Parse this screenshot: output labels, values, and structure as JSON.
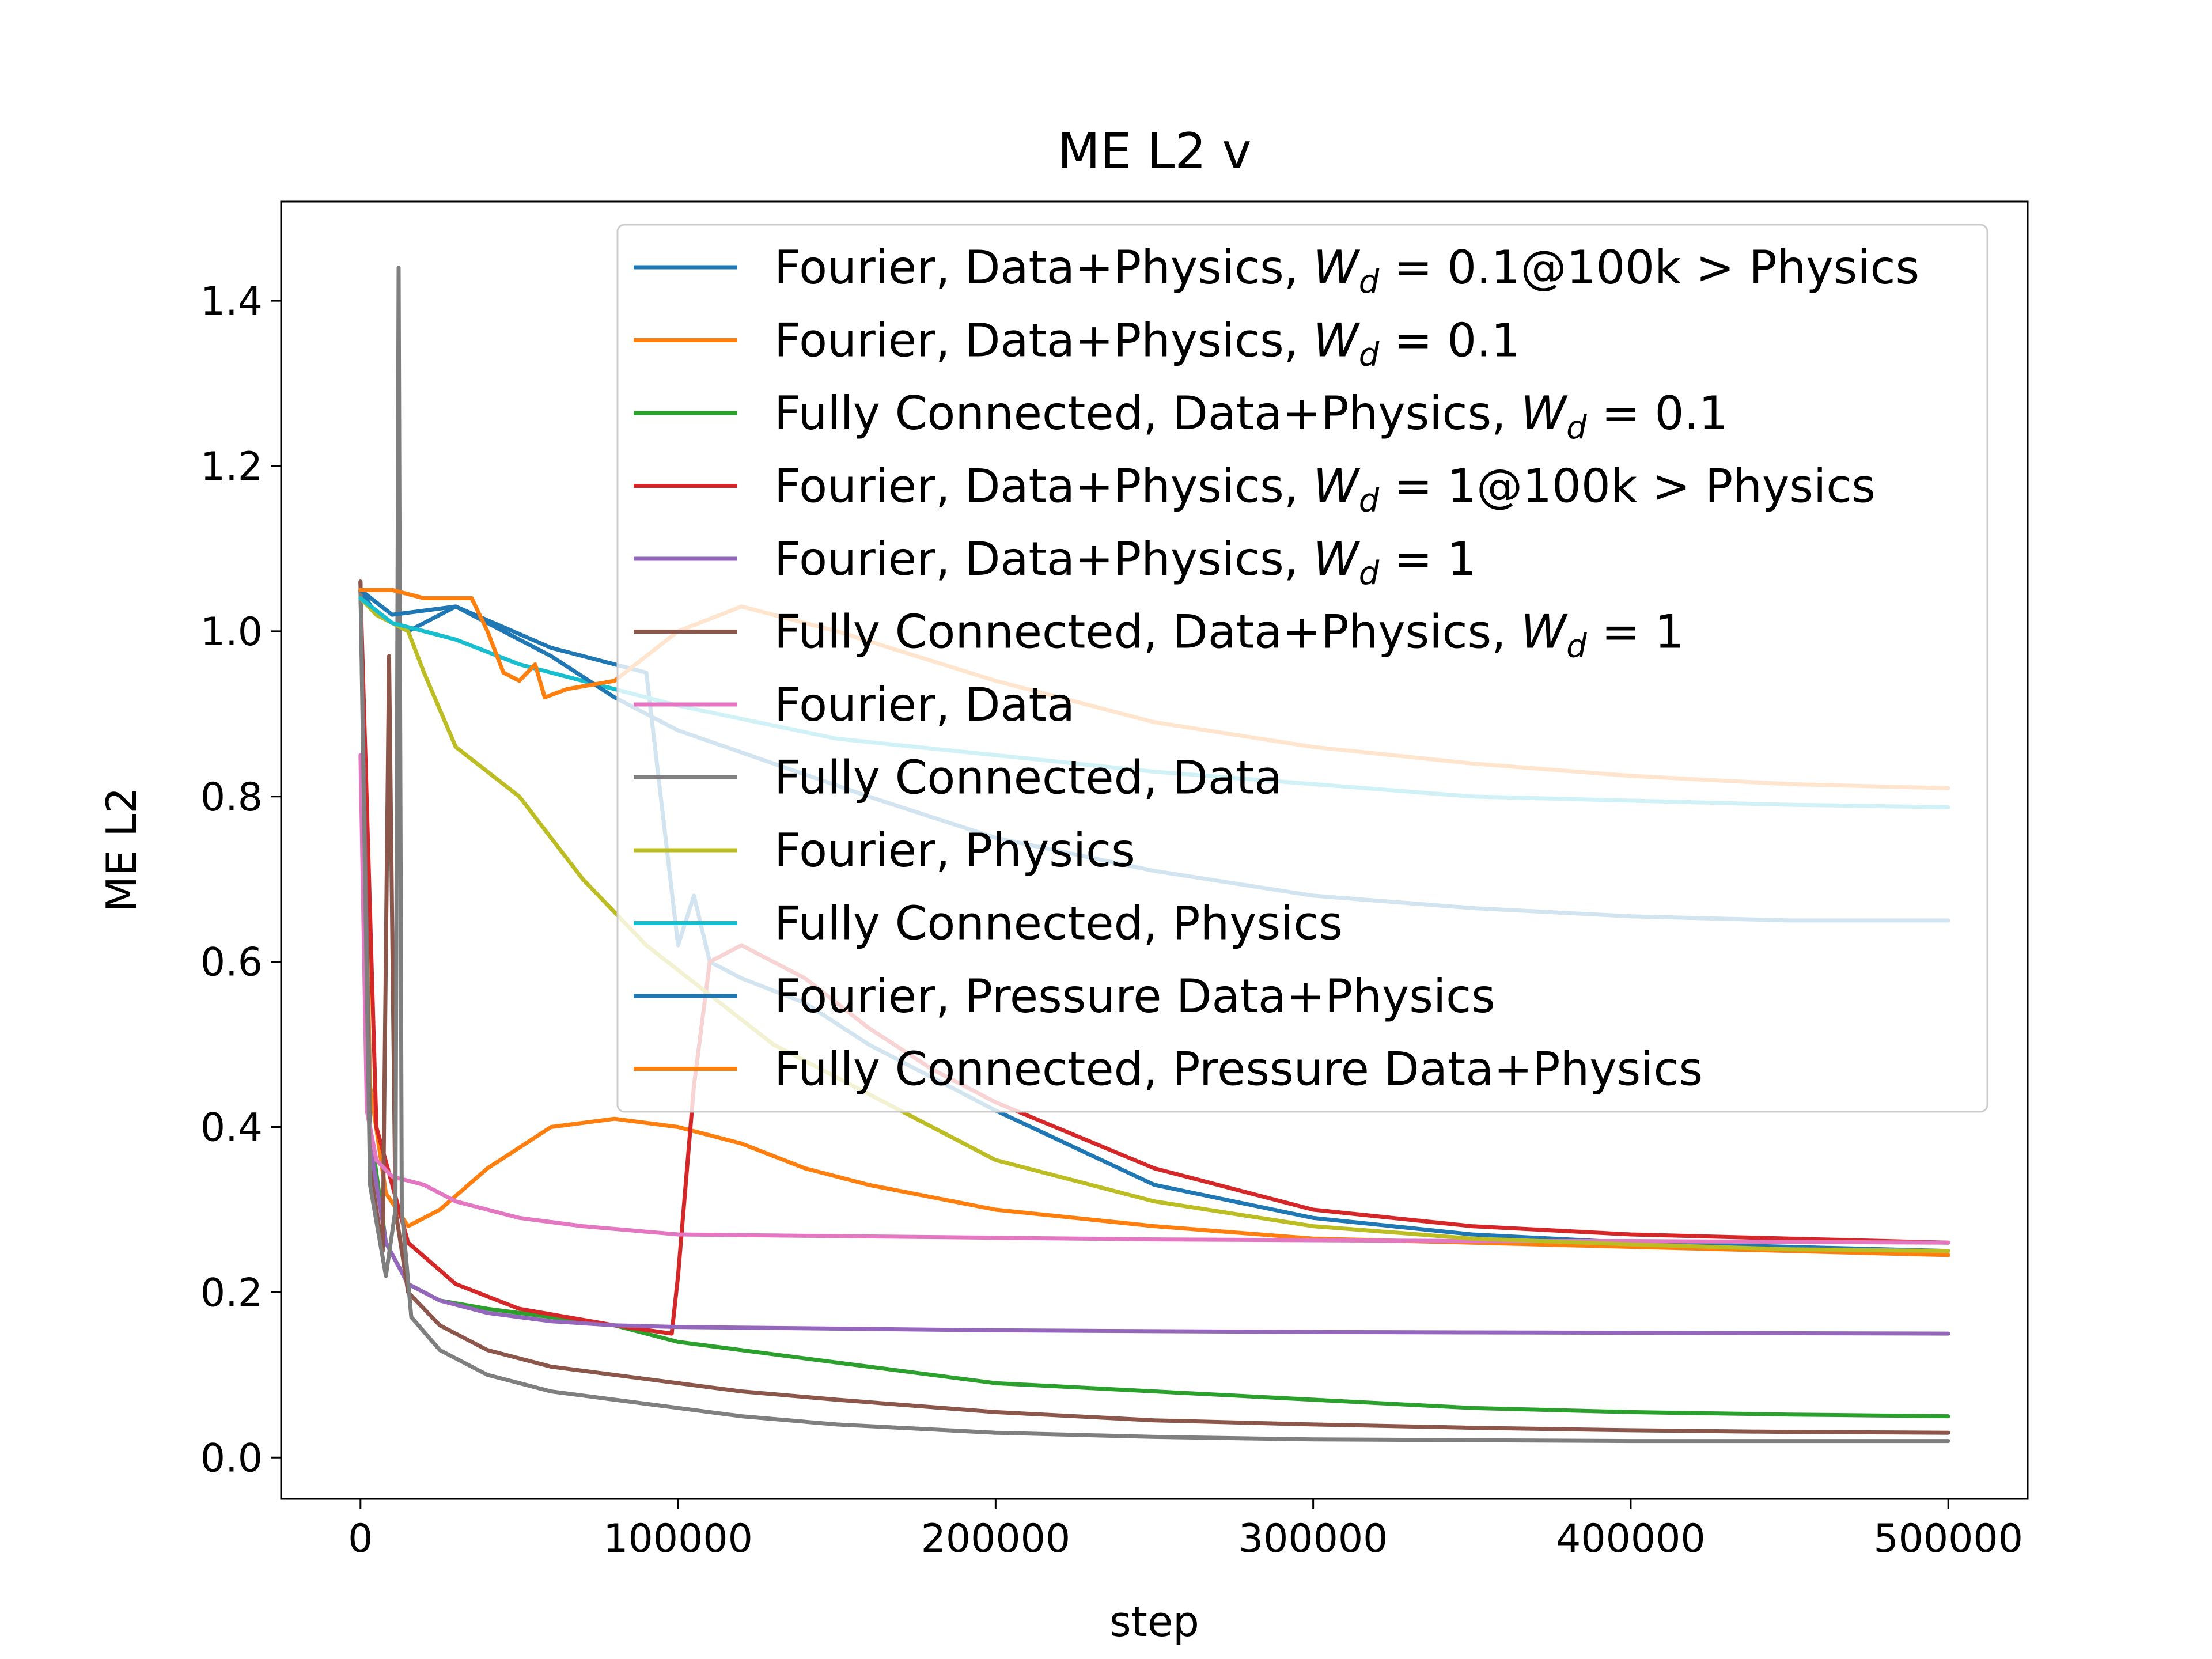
{
  "chart_data": {
    "type": "line",
    "title": "ME L2 v",
    "xlabel": "step",
    "ylabel": "ME L2",
    "xlim": [
      -25000,
      525000
    ],
    "ylim": [
      -0.05,
      1.52
    ],
    "xticks": [
      0,
      100000,
      200000,
      300000,
      400000,
      500000
    ],
    "xtick_labels": [
      "0",
      "100000",
      "200000",
      "300000",
      "400000",
      "500000"
    ],
    "yticks": [
      0.0,
      0.2,
      0.4,
      0.6,
      0.8,
      1.0,
      1.2,
      1.4
    ],
    "ytick_labels": [
      "0.0",
      "0.2",
      "0.4",
      "0.6",
      "0.8",
      "1.0",
      "1.2",
      "1.4"
    ],
    "grid": false,
    "legend_position": "top-right",
    "series": [
      {
        "name": "Fourier, Data+Physics, W_d = 0.1@100k > Physics",
        "legend_prefix": "Fourier, Data+Physics, ",
        "legend_math": "= 0.1@100k > Physics",
        "color": "#1f77b4",
        "x": [
          0,
          5000,
          15000,
          30000,
          60000,
          90000,
          100000,
          105000,
          110000,
          120000,
          140000,
          160000,
          180000,
          200000,
          250000,
          300000,
          350000,
          400000,
          450000,
          500000
        ],
        "y": [
          1.05,
          1.02,
          1.0,
          1.03,
          0.98,
          0.95,
          0.62,
          0.68,
          0.6,
          0.58,
          0.55,
          0.5,
          0.46,
          0.42,
          0.33,
          0.29,
          0.27,
          0.26,
          0.255,
          0.25
        ]
      },
      {
        "name": "Fourier, Data+Physics, W_d = 0.1",
        "legend_prefix": "Fourier, Data+Physics, ",
        "legend_math": "= 0.1",
        "color": "#ff7f0e",
        "x": [
          0,
          3000,
          8000,
          15000,
          25000,
          40000,
          60000,
          80000,
          100000,
          120000,
          140000,
          160000,
          200000,
          250000,
          300000,
          350000,
          400000,
          450000,
          500000
        ],
        "y": [
          1.05,
          0.45,
          0.32,
          0.28,
          0.3,
          0.35,
          0.4,
          0.41,
          0.4,
          0.38,
          0.35,
          0.33,
          0.3,
          0.28,
          0.265,
          0.26,
          0.255,
          0.25,
          0.245
        ]
      },
      {
        "name": "Fully Connected, Data+Physics, W_d = 0.1",
        "legend_prefix": "Fully Connected, Data+Physics, ",
        "legend_math": "= 0.1",
        "color": "#2ca02c",
        "x": [
          0,
          3000,
          8000,
          15000,
          25000,
          40000,
          60000,
          80000,
          100000,
          120000,
          140000,
          160000,
          180000,
          200000,
          250000,
          300000,
          350000,
          400000,
          450000,
          500000
        ],
        "y": [
          1.06,
          0.4,
          0.26,
          0.21,
          0.19,
          0.18,
          0.17,
          0.16,
          0.14,
          0.13,
          0.12,
          0.11,
          0.1,
          0.09,
          0.08,
          0.07,
          0.06,
          0.055,
          0.052,
          0.05
        ]
      },
      {
        "name": "Fourier, Data+Physics, W_d = 1@100k > Physics",
        "legend_prefix": "Fourier, Data+Physics, ",
        "legend_math": "= 1@100k > Physics",
        "color": "#d62728",
        "x": [
          0,
          5000,
          15000,
          30000,
          50000,
          80000,
          98000,
          100000,
          105000,
          110000,
          120000,
          140000,
          160000,
          180000,
          200000,
          250000,
          300000,
          350000,
          400000,
          450000,
          500000
        ],
        "y": [
          1.05,
          0.4,
          0.26,
          0.21,
          0.18,
          0.16,
          0.15,
          0.22,
          0.45,
          0.6,
          0.62,
          0.58,
          0.52,
          0.47,
          0.43,
          0.35,
          0.3,
          0.28,
          0.27,
          0.265,
          0.26
        ]
      },
      {
        "name": "Fourier, Data+Physics, W_d = 1",
        "legend_prefix": "Fourier, Data+Physics, ",
        "legend_math": "= 1",
        "color": "#9467bd",
        "x": [
          0,
          3000,
          8000,
          15000,
          25000,
          40000,
          60000,
          80000,
          100000,
          150000,
          200000,
          300000,
          400000,
          500000
        ],
        "y": [
          1.06,
          0.38,
          0.26,
          0.21,
          0.19,
          0.175,
          0.165,
          0.16,
          0.158,
          0.156,
          0.154,
          0.152,
          0.151,
          0.15
        ]
      },
      {
        "name": "Fully Connected, Data+Physics, W_d = 1",
        "legend_prefix": "Fully Connected, Data+Physics, ",
        "legend_math": "= 1",
        "color": "#8c564b",
        "x": [
          0,
          3000,
          7000,
          9000,
          11000,
          15000,
          25000,
          40000,
          60000,
          80000,
          100000,
          120000,
          150000,
          200000,
          250000,
          300000,
          350000,
          400000,
          450000,
          500000
        ],
        "y": [
          1.06,
          0.35,
          0.25,
          0.97,
          0.3,
          0.2,
          0.16,
          0.13,
          0.11,
          0.1,
          0.09,
          0.08,
          0.07,
          0.055,
          0.045,
          0.04,
          0.036,
          0.033,
          0.031,
          0.03
        ]
      },
      {
        "name": "Fourier, Data",
        "legend_prefix": "Fourier, Data",
        "legend_math": "",
        "color": "#e377c2",
        "x": [
          0,
          2000,
          5000,
          10000,
          20000,
          30000,
          50000,
          70000,
          100000,
          150000,
          200000,
          250000,
          300000,
          350000,
          400000,
          450000,
          500000
        ],
        "y": [
          0.85,
          0.42,
          0.36,
          0.34,
          0.33,
          0.31,
          0.29,
          0.28,
          0.27,
          0.268,
          0.266,
          0.264,
          0.263,
          0.262,
          0.262,
          0.261,
          0.26
        ]
      },
      {
        "name": "Fully Connected, Data",
        "legend_prefix": "Fully Connected, Data",
        "legend_math": "",
        "color": "#7f7f7f",
        "x": [
          0,
          3000,
          8000,
          11000,
          12000,
          13000,
          16000,
          25000,
          40000,
          60000,
          80000,
          100000,
          120000,
          150000,
          200000,
          250000,
          300000,
          350000,
          400000,
          450000,
          500000
        ],
        "y": [
          1.05,
          0.33,
          0.22,
          0.3,
          1.44,
          0.3,
          0.17,
          0.13,
          0.1,
          0.08,
          0.07,
          0.06,
          0.05,
          0.04,
          0.03,
          0.025,
          0.022,
          0.021,
          0.02,
          0.02,
          0.02
        ]
      },
      {
        "name": "Fourier, Physics",
        "legend_prefix": "Fourier, Physics",
        "legend_math": "",
        "color": "#bcbd22",
        "x": [
          0,
          5000,
          15000,
          20000,
          30000,
          50000,
          70000,
          90000,
          110000,
          130000,
          150000,
          170000,
          200000,
          250000,
          300000,
          350000,
          400000,
          450000,
          500000
        ],
        "y": [
          1.04,
          1.02,
          1.0,
          0.95,
          0.86,
          0.8,
          0.7,
          0.62,
          0.56,
          0.5,
          0.46,
          0.42,
          0.36,
          0.31,
          0.28,
          0.265,
          0.258,
          0.252,
          0.25
        ]
      },
      {
        "name": "Fully Connected, Physics",
        "legend_prefix": "Fully Connected, Physics",
        "legend_math": "",
        "color": "#17becf",
        "x": [
          0,
          10000,
          30000,
          50000,
          80000,
          100000,
          150000,
          200000,
          250000,
          300000,
          350000,
          400000,
          450000,
          500000
        ],
        "y": [
          1.04,
          1.01,
          0.99,
          0.96,
          0.93,
          0.91,
          0.87,
          0.85,
          0.83,
          0.815,
          0.8,
          0.795,
          0.79,
          0.787
        ]
      },
      {
        "name": "Fourier, Pressure Data+Physics",
        "legend_prefix": "Fourier, Pressure Data+Physics",
        "legend_math": "",
        "color": "#1f77b4",
        "x": [
          0,
          10000,
          30000,
          60000,
          80000,
          100000,
          130000,
          160000,
          200000,
          250000,
          300000,
          350000,
          400000,
          450000,
          500000
        ],
        "y": [
          1.05,
          1.02,
          1.03,
          0.97,
          0.92,
          0.88,
          0.84,
          0.8,
          0.75,
          0.71,
          0.68,
          0.665,
          0.655,
          0.65,
          0.65
        ]
      },
      {
        "name": "Fully Connected, Pressure Data+Physics",
        "legend_prefix": "Fully Connected, Pressure Data+Physics",
        "legend_math": "",
        "color": "#ff7f0e",
        "x": [
          0,
          10000,
          20000,
          35000,
          40000,
          45000,
          50000,
          55000,
          58000,
          65000,
          80000,
          100000,
          120000,
          150000,
          200000,
          250000,
          300000,
          350000,
          400000,
          450000,
          500000
        ],
        "y": [
          1.05,
          1.05,
          1.04,
          1.04,
          1.0,
          0.95,
          0.94,
          0.96,
          0.92,
          0.93,
          0.94,
          1.0,
          1.03,
          1.0,
          0.94,
          0.89,
          0.86,
          0.84,
          0.825,
          0.815,
          0.81
        ]
      }
    ]
  }
}
